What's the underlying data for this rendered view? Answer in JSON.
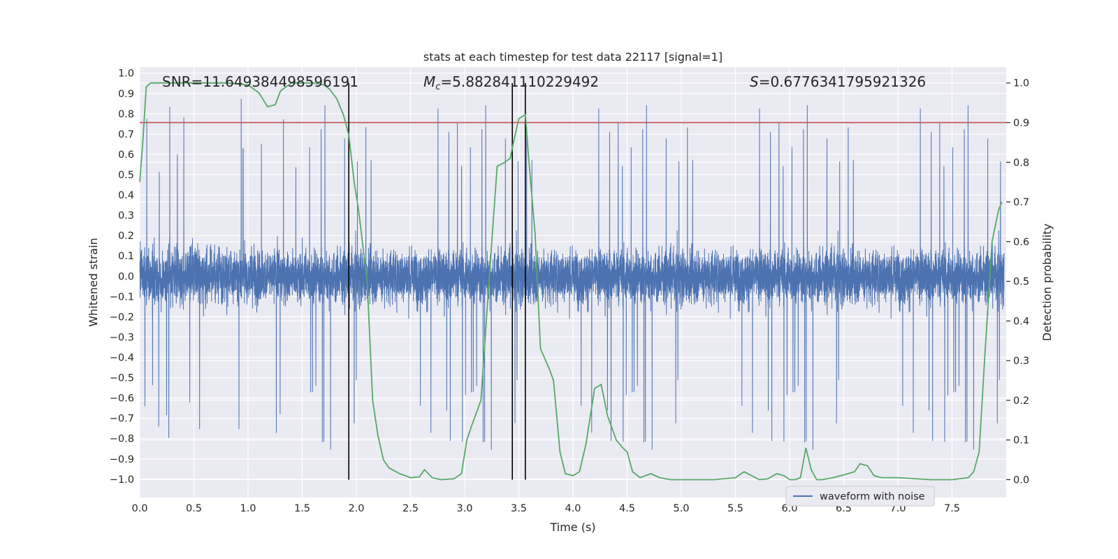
{
  "chart_data": {
    "type": "line",
    "title": "stats at each timestep for test data 22117 [signal=1]",
    "xlabel": "Time (s)",
    "ylabel": "Whitened strain",
    "y2label": "Detection probability",
    "xlim": [
      0.0,
      8.0
    ],
    "ylim": [
      -1.09,
      1.03
    ],
    "y2lim": [
      -0.045,
      1.04
    ],
    "xticks": [
      "0.0",
      "0.5",
      "1.0",
      "1.5",
      "2.0",
      "2.5",
      "3.0",
      "3.5",
      "4.0",
      "4.5",
      "5.0",
      "5.5",
      "6.0",
      "6.5",
      "7.0",
      "7.5"
    ],
    "yticks": [
      "1.0",
      "0.9",
      "0.8",
      "0.7",
      "0.6",
      "0.5",
      "0.4",
      "0.3",
      "0.2",
      "0.1",
      "0.0",
      "−0.1",
      "−0.2",
      "−0.3",
      "−0.4",
      "−0.5",
      "−0.6",
      "−0.7",
      "−0.8",
      "−0.9",
      "−1.0"
    ],
    "y2ticks": [
      "1.0",
      "0.9",
      "0.8",
      "0.7",
      "0.6",
      "0.5",
      "0.4",
      "0.3",
      "0.2",
      "0.1",
      "0.0"
    ],
    "annotations": {
      "snr": "SNR=11.649384498596191",
      "mc_symbol": "M",
      "mc_sub": "c",
      "mc_value": "=5.882841110229492",
      "s_symbol": "S",
      "s_value": "=0.6776341795921326"
    },
    "threshold": 0.9,
    "vertical_lines_x": [
      1.93,
      3.44,
      3.56
    ],
    "series": [
      {
        "name": "waveform with noise",
        "color": "#4c72b0",
        "axis": "left",
        "description": "noisy whitened strain, roughly ±0.45 with spikes to ±0.9",
        "samples": 8000,
        "core_amplitude": 0.45,
        "peak_positive": 0.9,
        "peak_negative": -1.0
      },
      {
        "name": "detection probability",
        "color": "#55a868",
        "axis": "right",
        "x": [
          0.0,
          0.03,
          0.06,
          0.1,
          0.2,
          0.5,
          0.8,
          1.0,
          1.1,
          1.18,
          1.25,
          1.3,
          1.4,
          1.6,
          1.7,
          1.75,
          1.82,
          1.88,
          1.93,
          1.98,
          2.02,
          2.1,
          2.15,
          2.2,
          2.25,
          2.3,
          2.4,
          2.5,
          2.58,
          2.63,
          2.7,
          2.78,
          2.9,
          2.97,
          3.02,
          3.07,
          3.15,
          3.2,
          3.25,
          3.3,
          3.37,
          3.42,
          3.45,
          3.5,
          3.56,
          3.6,
          3.65,
          3.7,
          3.78,
          3.82,
          3.88,
          3.93,
          4.0,
          4.06,
          4.12,
          4.2,
          4.26,
          4.32,
          4.4,
          4.46,
          4.5,
          4.55,
          4.62,
          4.72,
          4.8,
          4.9,
          5.1,
          5.3,
          5.5,
          5.58,
          5.65,
          5.72,
          5.8,
          5.88,
          5.95,
          6.0,
          6.05,
          6.1,
          6.15,
          6.2,
          6.25,
          6.3,
          6.4,
          6.5,
          6.6,
          6.65,
          6.72,
          6.78,
          6.85,
          7.0,
          7.3,
          7.5,
          7.65,
          7.7,
          7.75,
          7.8,
          7.87,
          7.93,
          7.96
        ],
        "values": [
          0.75,
          0.86,
          0.99,
          1.0,
          1.0,
          1.0,
          1.0,
          0.995,
          0.975,
          0.94,
          0.945,
          0.98,
          1.0,
          1.0,
          0.995,
          0.985,
          0.96,
          0.92,
          0.87,
          0.75,
          0.68,
          0.5,
          0.2,
          0.11,
          0.05,
          0.03,
          0.015,
          0.005,
          0.007,
          0.025,
          0.005,
          0.0,
          0.002,
          0.015,
          0.1,
          0.14,
          0.2,
          0.4,
          0.6,
          0.79,
          0.8,
          0.81,
          0.85,
          0.91,
          0.92,
          0.78,
          0.62,
          0.33,
          0.28,
          0.25,
          0.07,
          0.015,
          0.01,
          0.02,
          0.09,
          0.23,
          0.24,
          0.16,
          0.1,
          0.08,
          0.07,
          0.02,
          0.005,
          0.015,
          0.005,
          0.0,
          0.0,
          0.0,
          0.005,
          0.02,
          0.01,
          0.0,
          0.002,
          0.015,
          0.01,
          0.0,
          0.0,
          0.005,
          0.08,
          0.025,
          0.0,
          0.0,
          0.005,
          0.012,
          0.02,
          0.04,
          0.035,
          0.01,
          0.005,
          0.005,
          0.0,
          0.0,
          0.005,
          0.02,
          0.07,
          0.3,
          0.6,
          0.68,
          0.7
        ]
      }
    ],
    "legend": [
      "waveform with noise"
    ],
    "legend_position": "lower-right"
  }
}
